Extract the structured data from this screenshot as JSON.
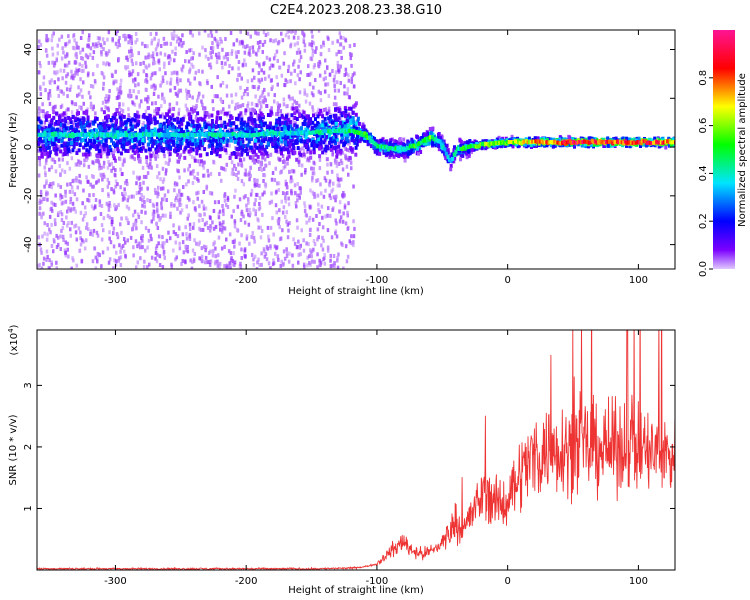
{
  "title": "C2E4.2023.208.23.38.G10",
  "chart_data": [
    {
      "type": "heatmap",
      "xlabel": "Height of straight line (km)",
      "ylabel": "Frequency (Hz)",
      "xlim": [
        -360,
        128
      ],
      "ylim": [
        -50,
        48
      ],
      "x_ticks": [
        -300,
        -200,
        -100,
        0,
        100
      ],
      "y_ticks": [
        -40,
        -20,
        0,
        20,
        40
      ],
      "x_tick_labels": [
        "-300",
        "-200",
        "-100",
        "0",
        "100"
      ],
      "y_tick_labels": [
        "-40",
        "-20",
        "0",
        "20",
        "40"
      ],
      "colorbar": {
        "label": "Normalized spectral amplitude",
        "range": [
          0,
          1
        ],
        "ticks": [
          0.0,
          0.2,
          0.4,
          0.6,
          0.8
        ],
        "tick_labels": [
          "0.0",
          "0.2",
          "0.4",
          "0.6",
          "0.8"
        ],
        "colormap": [
          "#e0c8ff",
          "#7b00ff",
          "#0000ff",
          "#00e5ff",
          "#00ff00",
          "#ffff00",
          "#ff0000",
          "#ff1493"
        ]
      },
      "ridge": {
        "x": [
          -360,
          -300,
          -250,
          -200,
          -150,
          -120,
          -110,
          -100,
          -80,
          -70,
          -60,
          -55,
          -50,
          -45,
          -40,
          -30,
          -20,
          0,
          20,
          40,
          60,
          80,
          100,
          128
        ],
        "y": [
          5,
          5,
          5,
          5,
          6,
          7,
          5,
          0,
          -1,
          1,
          4,
          3,
          0,
          -6,
          -1,
          0,
          1,
          2,
          2,
          2,
          2,
          2,
          2,
          2
        ],
        "amplitude": [
          0.45,
          0.45,
          0.45,
          0.45,
          0.45,
          0.5,
          0.55,
          0.5,
          0.5,
          0.55,
          0.6,
          0.5,
          0.45,
          0.4,
          0.5,
          0.55,
          0.6,
          0.65,
          0.75,
          0.85,
          0.9,
          0.85,
          0.85,
          0.8
        ]
      }
    },
    {
      "type": "line",
      "xlabel": "Height of straight line (km)",
      "ylabel": "SNR (10 * v/v)",
      "scale_label": "(x10",
      "scale_exp": "4",
      "scale_close": ")",
      "xlim": [
        -360,
        128
      ],
      "ylim": [
        0,
        3.9
      ],
      "x_ticks": [
        -300,
        -200,
        -100,
        0,
        100
      ],
      "y_ticks": [
        1,
        2,
        3
      ],
      "x_tick_labels": [
        "-300",
        "-200",
        "-100",
        "0",
        "100"
      ],
      "y_tick_labels": [
        "1",
        "2",
        "3"
      ],
      "line_color": "#ee3333",
      "series": [
        {
          "x": [
            -360,
            -300,
            -250,
            -200,
            -150,
            -120,
            -110,
            -100,
            -95,
            -90,
            -85,
            -80,
            -75,
            -70,
            -65,
            -60,
            -55,
            -50,
            -45,
            -40,
            -35,
            -30,
            -25,
            -20,
            -15,
            -10,
            -5,
            0,
            10,
            20,
            30,
            40,
            50,
            60,
            70,
            80,
            90,
            95,
            100,
            110,
            120,
            128
          ],
          "y": [
            0.02,
            0.02,
            0.02,
            0.02,
            0.02,
            0.03,
            0.05,
            0.1,
            0.2,
            0.3,
            0.35,
            0.5,
            0.35,
            0.3,
            0.25,
            0.3,
            0.35,
            0.45,
            0.6,
            0.8,
            0.7,
            0.8,
            1.0,
            1.2,
            1.3,
            1.1,
            1.0,
            1.2,
            1.6,
            1.85,
            1.95,
            2.0,
            2.0,
            2.0,
            2.0,
            1.95,
            2.0,
            2.1,
            1.95,
            1.9,
            1.85,
            1.9
          ]
        }
      ]
    }
  ]
}
